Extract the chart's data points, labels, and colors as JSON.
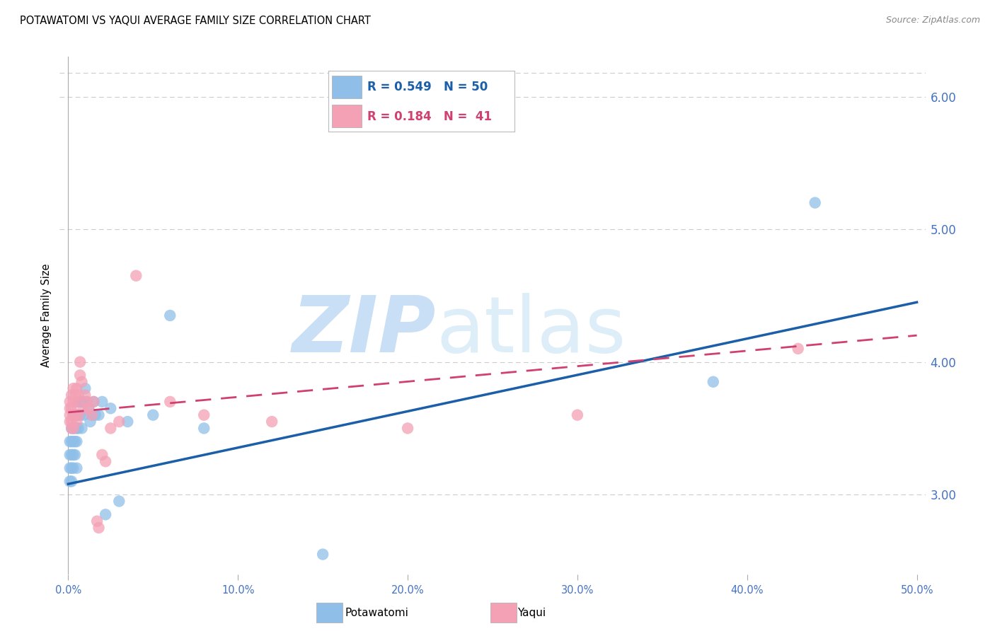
{
  "title": "POTAWATOMI VS YAQUI AVERAGE FAMILY SIZE CORRELATION CHART",
  "source": "Source: ZipAtlas.com",
  "ylabel": "Average Family Size",
  "xlim": [
    -0.005,
    0.505
  ],
  "ylim": [
    2.4,
    6.3
  ],
  "yticks": [
    3.0,
    4.0,
    5.0,
    6.0
  ],
  "xticks": [
    0.0,
    0.1,
    0.2,
    0.3,
    0.4,
    0.5
  ],
  "xticklabels": [
    "0.0%",
    "10.0%",
    "20.0%",
    "30.0%",
    "40.0%",
    "50.0%"
  ],
  "potawatomi_R": 0.549,
  "potawatomi_N": 50,
  "yaqui_R": 0.184,
  "yaqui_N": 41,
  "potawatomi_color": "#8fbfe8",
  "yaqui_color": "#f4a0b5",
  "trend_potawatomi_color": "#1a5fa8",
  "trend_yaqui_color": "#d04070",
  "background_color": "#ffffff",
  "axis_color": "#4472c4",
  "grid_color": "#cccccc",
  "potawatomi_x": [
    0.001,
    0.001,
    0.001,
    0.001,
    0.002,
    0.002,
    0.002,
    0.002,
    0.002,
    0.003,
    0.003,
    0.003,
    0.003,
    0.003,
    0.004,
    0.004,
    0.004,
    0.004,
    0.005,
    0.005,
    0.005,
    0.005,
    0.006,
    0.006,
    0.006,
    0.007,
    0.007,
    0.008,
    0.008,
    0.009,
    0.009,
    0.01,
    0.011,
    0.012,
    0.013,
    0.014,
    0.015,
    0.016,
    0.018,
    0.02,
    0.022,
    0.025,
    0.03,
    0.035,
    0.05,
    0.06,
    0.08,
    0.15,
    0.38,
    0.44
  ],
  "potawatomi_y": [
    3.4,
    3.3,
    3.2,
    3.1,
    3.5,
    3.4,
    3.3,
    3.2,
    3.1,
    3.6,
    3.5,
    3.4,
    3.3,
    3.2,
    3.6,
    3.5,
    3.4,
    3.3,
    3.6,
    3.5,
    3.4,
    3.2,
    3.7,
    3.6,
    3.5,
    3.7,
    3.6,
    3.7,
    3.5,
    3.7,
    3.6,
    3.8,
    3.7,
    3.65,
    3.55,
    3.6,
    3.7,
    3.6,
    3.6,
    3.7,
    2.85,
    3.65,
    2.95,
    3.55,
    3.6,
    4.35,
    3.5,
    2.55,
    3.85,
    5.2
  ],
  "yaqui_x": [
    0.001,
    0.001,
    0.001,
    0.001,
    0.002,
    0.002,
    0.002,
    0.002,
    0.003,
    0.003,
    0.003,
    0.003,
    0.004,
    0.004,
    0.005,
    0.005,
    0.005,
    0.006,
    0.006,
    0.007,
    0.007,
    0.008,
    0.009,
    0.01,
    0.011,
    0.012,
    0.014,
    0.015,
    0.017,
    0.018,
    0.02,
    0.022,
    0.025,
    0.03,
    0.04,
    0.06,
    0.08,
    0.12,
    0.2,
    0.3,
    0.43
  ],
  "yaqui_y": [
    3.7,
    3.65,
    3.6,
    3.55,
    3.75,
    3.65,
    3.55,
    3.5,
    3.8,
    3.7,
    3.6,
    3.5,
    3.75,
    3.6,
    3.8,
    3.7,
    3.55,
    3.75,
    3.6,
    4.0,
    3.9,
    3.85,
    3.65,
    3.75,
    3.7,
    3.65,
    3.6,
    3.7,
    2.8,
    2.75,
    3.3,
    3.25,
    3.5,
    3.55,
    4.65,
    3.7,
    3.6,
    3.55,
    3.5,
    3.6,
    4.1
  ],
  "pot_trend_x0": 0.0,
  "pot_trend_x1": 0.5,
  "pot_trend_y0": 3.08,
  "pot_trend_y1": 4.45,
  "yaq_trend_x0": 0.0,
  "yaq_trend_x1": 0.5,
  "yaq_trend_y0": 3.62,
  "yaq_trend_y1": 4.2
}
